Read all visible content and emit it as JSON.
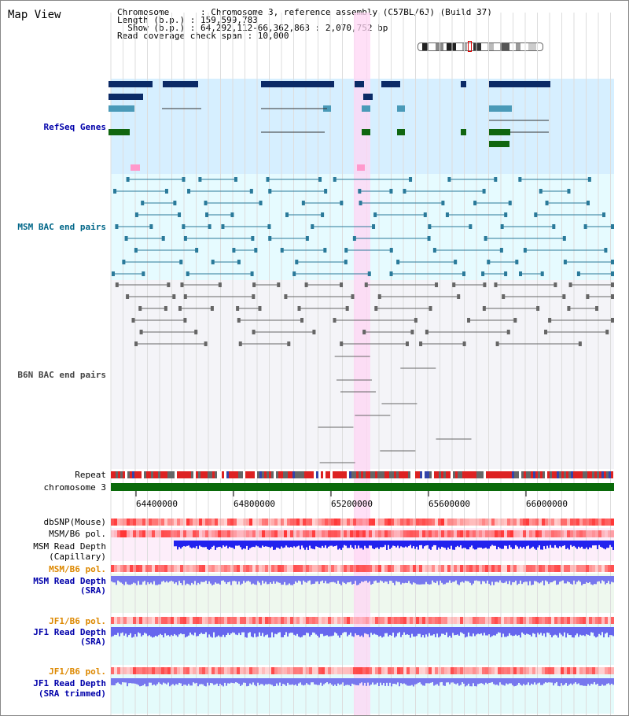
{
  "title": "Map View",
  "info": {
    "chromosome": "Chromosome      : Chromosome 3, reference assembly (C57BL/6J) (Build 37)",
    "length": "Length (b.p.) : 159,599,783",
    "show": "  Show (b.p.) : 64,292,112-66,362,863 : 2,070,752 bp",
    "span": "Read coverage check span : 10,000"
  },
  "tracks": {
    "refseq": "RefSeq Genes",
    "msm_bac": "MSM BAC end pairs",
    "b6n_bac": "B6N BAC end pairs",
    "repeat": "Repeat",
    "chromosome": "chromosome 3",
    "dbsnp": "dbSNP(Mouse)",
    "msm_b6_pol_1": "MSM/B6 pol.",
    "msm_read_depth_cap_1": "MSM Read Depth",
    "msm_read_depth_cap_2": "(Capillary)",
    "msm_b6_pol_2": "MSM/B6 pol.",
    "msm_read_depth_sra_1": "MSM Read Depth",
    "msm_read_depth_sra_2": "(SRA)",
    "jf1_b6_pol_1": "JF1/B6 pol.",
    "jf1_read_depth_sra_1": "JF1 Read Depth",
    "jf1_read_depth_sra_2": "(SRA)",
    "jf1_b6_pol_2": "JF1/B6 pol.",
    "jf1_read_depth_trim_1": "JF1 Read Depth",
    "jf1_read_depth_trim_2": "(SRA trimmed)"
  },
  "axis_ticks": [
    "64400000",
    "64800000",
    "65200000",
    "65600000",
    "66000000"
  ],
  "colors": {
    "refseq_bg": "#d6efff",
    "msm_bg": "#e6fbff",
    "b6n_bg": "#f4f4f8",
    "highlight": "#ffd6f4",
    "gene_navy": "#0b2a66",
    "gene_teal": "#4a9ab8",
    "gene_green": "#106610",
    "chrom_green": "#0a6a0a"
  }
}
